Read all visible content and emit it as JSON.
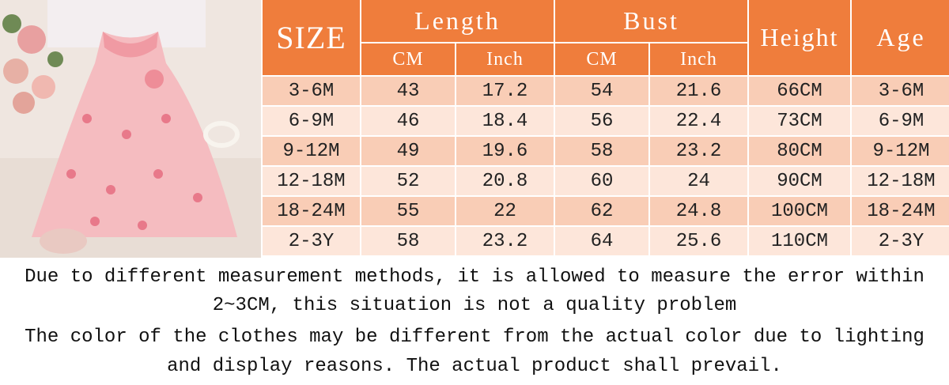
{
  "table": {
    "headers": {
      "size": "SIZE",
      "length": "Length",
      "bust": "Bust",
      "height": "Height",
      "age": "Age",
      "units": [
        "CM",
        "Inch",
        "CM",
        "Inch"
      ]
    },
    "rows": [
      [
        "3-6M",
        "43",
        "17.2",
        "54",
        "21.6",
        "66CM",
        "3-6M"
      ],
      [
        "6-9M",
        "46",
        "18.4",
        "56",
        "22.4",
        "73CM",
        "6-9M"
      ],
      [
        "9-12M",
        "49",
        "19.6",
        "58",
        "23.2",
        "80CM",
        "9-12M"
      ],
      [
        "12-18M",
        "52",
        "20.8",
        "60",
        "24",
        "90CM",
        "12-18M"
      ],
      [
        "18-24M",
        "55",
        "22",
        "62",
        "24.8",
        "100CM",
        "18-24M"
      ],
      [
        "2-3Y",
        "58",
        "23.2",
        "64",
        "25.6",
        "110CM",
        "2-3Y"
      ]
    ]
  },
  "notes": [
    "Due to different measurement methods, it is allowed to measure the error within",
    "2~3CM, this situation is not a quality problem",
    "The color of the clothes may be different from the actual color due to lighting",
    "and display reasons. The actual product shall prevail."
  ]
}
